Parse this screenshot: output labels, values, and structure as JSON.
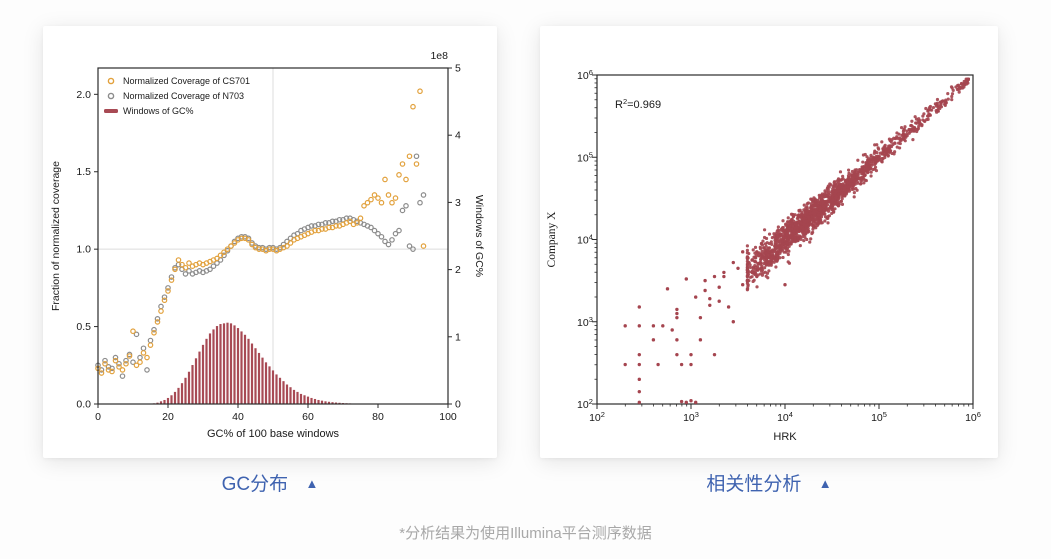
{
  "captions": {
    "left": "GC分布",
    "right": "相关性分析",
    "collapse_icon": "▲",
    "accent_color": "#3f63b0"
  },
  "footnote": {
    "text": "*分析结果为使用Illumina平台测序数据"
  },
  "chart_data": [
    {
      "id": "gc-distribution",
      "type": "scatter+bar",
      "xlabel": "GC% of 100 base windows",
      "ylabel_left": "Fraction of normalized coverage",
      "ylabel_right": "Windows of GC%",
      "right_axis_offset_label": "1e8",
      "xlim": [
        0,
        100
      ],
      "ylim_left": [
        0.0,
        2.17
      ],
      "ylim_right": [
        0,
        5
      ],
      "xticks": [
        0,
        20,
        40,
        60,
        80,
        100
      ],
      "yticks_left": [
        "0.0",
        "0.5",
        "1.0",
        "1.5",
        "2.0"
      ],
      "yticks_right": [
        0,
        1,
        2,
        3,
        4,
        5
      ],
      "grid": {
        "h_line_at_left_y": 1.0,
        "v_line_at_x": 50,
        "color": "#dcdcdc"
      },
      "series": [
        {
          "name": "Normalized Coverage of CS701",
          "type": "scatter",
          "marker": "open-circle",
          "axis": "left",
          "color": "#e2a13c",
          "x_start": 0,
          "x_step": 1,
          "values": [
            0.23,
            0.2,
            0.26,
            0.22,
            0.21,
            0.28,
            0.24,
            0.22,
            0.26,
            0.31,
            0.47,
            0.25,
            0.27,
            0.33,
            0.3,
            0.38,
            0.46,
            0.53,
            0.6,
            0.67,
            0.73,
            0.8,
            0.87,
            0.93,
            0.9,
            0.88,
            0.91,
            0.89,
            0.9,
            0.91,
            0.9,
            0.91,
            0.92,
            0.93,
            0.94,
            0.96,
            0.98,
            1.0,
            1.02,
            1.04,
            1.06,
            1.07,
            1.07,
            1.06,
            1.03,
            1.01,
            1.0,
            1.0,
            0.99,
            1.0,
            1.0,
            0.99,
            1.0,
            1.01,
            1.02,
            1.04,
            1.06,
            1.07,
            1.08,
            1.09,
            1.1,
            1.11,
            1.12,
            1.12,
            1.13,
            1.13,
            1.14,
            1.14,
            1.15,
            1.15,
            1.16,
            1.17,
            1.18,
            1.16,
            1.17,
            1.2,
            1.28,
            1.3,
            1.32,
            1.35,
            1.33,
            1.3,
            1.45,
            1.35,
            1.3,
            1.33,
            1.48,
            1.55,
            1.45,
            1.6,
            1.92,
            1.55,
            2.02,
            1.02
          ]
        },
        {
          "name": "Normalized Coverage of N703",
          "type": "scatter",
          "marker": "open-circle",
          "axis": "left",
          "color": "#8c8c8c",
          "x_start": 0,
          "x_step": 1,
          "values": [
            0.25,
            0.22,
            0.28,
            0.24,
            0.23,
            0.3,
            0.26,
            0.18,
            0.28,
            0.32,
            0.27,
            0.45,
            0.3,
            0.36,
            0.22,
            0.41,
            0.48,
            0.55,
            0.63,
            0.69,
            0.75,
            0.82,
            0.88,
            0.9,
            0.87,
            0.84,
            0.86,
            0.84,
            0.85,
            0.86,
            0.85,
            0.86,
            0.87,
            0.89,
            0.91,
            0.93,
            0.96,
            0.99,
            1.02,
            1.05,
            1.07,
            1.08,
            1.08,
            1.07,
            1.04,
            1.02,
            1.01,
            1.01,
            1.0,
            1.01,
            1.01,
            1.0,
            1.01,
            1.03,
            1.05,
            1.07,
            1.09,
            1.1,
            1.12,
            1.13,
            1.14,
            1.15,
            1.15,
            1.16,
            1.16,
            1.17,
            1.17,
            1.18,
            1.18,
            1.19,
            1.19,
            1.2,
            1.2,
            1.19,
            1.18,
            1.17,
            1.16,
            1.15,
            1.14,
            1.12,
            1.1,
            1.08,
            1.05,
            1.03,
            1.06,
            1.1,
            1.12,
            1.25,
            1.28,
            1.02,
            1.0,
            1.6,
            1.3,
            1.35
          ]
        },
        {
          "name": "Windows of GC%",
          "type": "bar",
          "marker": "thick-line",
          "axis": "right",
          "color": "#a84a54",
          "x_start": 16,
          "x_step": 1,
          "values": [
            0.01,
            0.02,
            0.04,
            0.06,
            0.09,
            0.13,
            0.18,
            0.24,
            0.31,
            0.39,
            0.48,
            0.58,
            0.68,
            0.78,
            0.88,
            0.97,
            1.05,
            1.11,
            1.16,
            1.19,
            1.2,
            1.21,
            1.2,
            1.17,
            1.13,
            1.08,
            1.03,
            0.97,
            0.9,
            0.83,
            0.76,
            0.69,
            0.62,
            0.56,
            0.5,
            0.44,
            0.39,
            0.34,
            0.29,
            0.25,
            0.21,
            0.18,
            0.15,
            0.13,
            0.11,
            0.09,
            0.075,
            0.06,
            0.05,
            0.04,
            0.033,
            0.027,
            0.022,
            0.018,
            0.014,
            0.011,
            0.009,
            0.007,
            0.005,
            0.004,
            0.003
          ]
        }
      ],
      "legend_position": "upper-left"
    },
    {
      "id": "correlation",
      "type": "scatter",
      "xlabel": "HRK",
      "ylabel": "Company X",
      "annotation": {
        "base": "R",
        "sup": "2",
        "suffix": "=0.969"
      },
      "x_log_range": [
        2,
        6
      ],
      "y_log_range": [
        2,
        6
      ],
      "xticks_exponents": [
        2,
        3,
        4,
        5,
        6
      ],
      "yticks_exponents": [
        2,
        3,
        4,
        5,
        6
      ],
      "point_color": "#a5454f",
      "outlier_points_log10": [
        [
          2.3,
          2.48
        ],
        [
          2.3,
          2.95
        ],
        [
          2.45,
          2.02
        ],
        [
          2.45,
          2.15
        ],
        [
          2.45,
          2.3
        ],
        [
          2.45,
          2.48
        ],
        [
          2.45,
          2.6
        ],
        [
          2.45,
          2.95
        ],
        [
          2.45,
          3.18
        ],
        [
          2.6,
          2.78
        ],
        [
          2.6,
          2.95
        ],
        [
          2.65,
          2.48
        ],
        [
          2.7,
          2.95
        ],
        [
          2.75,
          3.4
        ],
        [
          2.8,
          2.9
        ],
        [
          2.85,
          2.6
        ],
        [
          2.85,
          2.78
        ],
        [
          2.85,
          3.05
        ],
        [
          2.85,
          3.1
        ],
        [
          2.85,
          3.15
        ],
        [
          2.9,
          2.03
        ],
        [
          2.9,
          2.48
        ],
        [
          2.95,
          2.02
        ],
        [
          2.95,
          3.52
        ],
        [
          3.0,
          2.04
        ],
        [
          3.0,
          2.48
        ],
        [
          3.0,
          2.6
        ],
        [
          3.05,
          2.02
        ],
        [
          3.05,
          3.3
        ],
        [
          3.1,
          2.78
        ],
        [
          3.1,
          3.05
        ],
        [
          3.15,
          3.38
        ],
        [
          3.15,
          3.5
        ],
        [
          3.2,
          3.2
        ],
        [
          3.2,
          3.28
        ],
        [
          3.25,
          2.6
        ],
        [
          3.25,
          3.55
        ],
        [
          3.3,
          3.25
        ],
        [
          3.3,
          3.42
        ],
        [
          3.35,
          3.55
        ],
        [
          3.35,
          3.6
        ],
        [
          3.4,
          3.18
        ],
        [
          3.45,
          3.0
        ],
        [
          3.45,
          3.72
        ],
        [
          3.5,
          3.65
        ],
        [
          3.55,
          3.45
        ],
        [
          3.55,
          3.85
        ],
        [
          3.6,
          3.5
        ],
        [
          3.6,
          3.78
        ],
        [
          3.65,
          3.6
        ],
        [
          3.65,
          3.75
        ],
        [
          3.7,
          3.55
        ],
        [
          3.7,
          3.85
        ],
        [
          3.75,
          3.65
        ],
        [
          3.75,
          3.95
        ],
        [
          3.8,
          3.7
        ],
        [
          3.85,
          3.85
        ],
        [
          3.9,
          3.78
        ],
        [
          3.95,
          3.9
        ],
        [
          4.0,
          3.45
        ]
      ],
      "dense_cloud": {
        "description": "diagonal correlation cloud y≈x",
        "n": 1600,
        "seed": 42,
        "center_log": 4.3,
        "center_sigma": 0.38,
        "uniform_fraction": 0.3,
        "log_min": 3.6,
        "log_max": 6.0,
        "scatter_sigma_near": 0.12,
        "scatter_sigma_far": 0.025
      }
    }
  ]
}
